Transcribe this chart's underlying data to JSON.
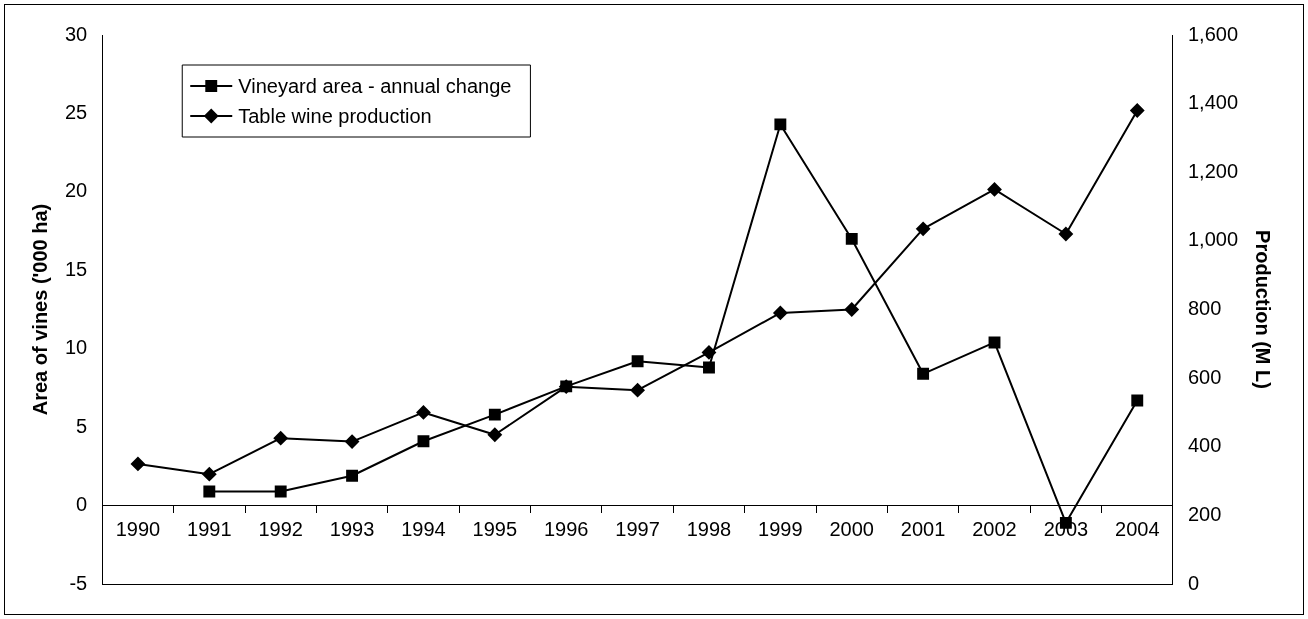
{
  "chart_data": {
    "type": "line",
    "categories": [
      "1990",
      "1991",
      "1992",
      "1993",
      "1994",
      "1995",
      "1996",
      "1997",
      "1998",
      "1999",
      "2000",
      "2001",
      "2002",
      "2003",
      "2004"
    ],
    "ylabel": "Area of vines ('000 ha)",
    "y2label": "Production (M L)",
    "series": [
      {
        "name": "Vineyard area - annual change",
        "color": "#000000",
        "marker": "square",
        "values": [
          null,
          0.9,
          0.9,
          1.9,
          4.1,
          5.8,
          7.6,
          9.2,
          8.8,
          24.3,
          17,
          8.4,
          10.4,
          -1.1,
          6.7
        ]
      },
      {
        "name": "Table wine production",
        "color": "#000000",
        "marker": "diamond",
        "axis": "y2",
        "values": [
          350,
          320,
          425,
          415,
          500,
          435,
          575,
          565,
          675,
          790,
          800,
          1035,
          1150,
          1020,
          1380
        ]
      }
    ],
    "ylim": [
      -5,
      30
    ],
    "yticks": [
      -5,
      0,
      5,
      10,
      15,
      20,
      25,
      30
    ],
    "y2lim": [
      0,
      1600
    ],
    "y2ticks": [
      0,
      200,
      400,
      600,
      800,
      {
        "value": 1000,
        "label": "1,000"
      },
      {
        "value": 1200,
        "label": "1,200"
      },
      {
        "value": 1400,
        "label": "1,400"
      },
      {
        "value": 1600,
        "label": "1,600"
      }
    ],
    "grid": false,
    "legend": "top left",
    "line_style": "solid"
  }
}
